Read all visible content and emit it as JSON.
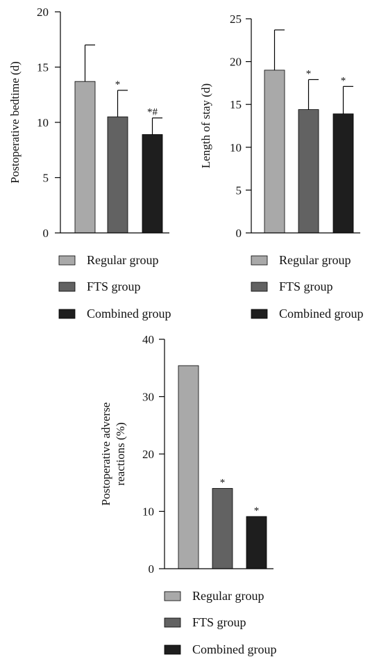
{
  "chart_data": [
    {
      "type": "bar",
      "ylabel": "Postoperative bedtime (d)",
      "ylim": [
        0,
        20
      ],
      "yticks": [
        0,
        5,
        10,
        15,
        20
      ],
      "categories": [
        "Regular group",
        "FTS group",
        "Combined group"
      ],
      "values": [
        13.7,
        10.5,
        8.9
      ],
      "errors": [
        3.3,
        2.4,
        1.5
      ],
      "annotations": [
        "",
        "*",
        "*#"
      ],
      "colors": [
        "#a9a9a9",
        "#626262",
        "#1e1e1e"
      ],
      "legend": [
        "Regular group",
        "FTS group",
        "Combined group"
      ]
    },
    {
      "type": "bar",
      "ylabel": "Length of stay (d)",
      "ylim": [
        0,
        25
      ],
      "yticks": [
        0,
        5,
        10,
        15,
        20,
        25
      ],
      "categories": [
        "Regular group",
        "FTS group",
        "Combined group"
      ],
      "values": [
        19.0,
        14.4,
        13.9
      ],
      "errors": [
        4.7,
        3.5,
        3.2
      ],
      "annotations": [
        "",
        "*",
        "*"
      ],
      "colors": [
        "#a9a9a9",
        "#626262",
        "#1e1e1e"
      ],
      "legend": [
        "Regular group",
        "FTS group",
        "Combined group"
      ]
    },
    {
      "type": "bar",
      "ylabel": "Postoperative adverse reactions (%)",
      "ylabel_lines": [
        "Postoperative adverse",
        "reactions (%)"
      ],
      "ylim": [
        0,
        40
      ],
      "yticks": [
        0,
        10,
        20,
        30,
        40
      ],
      "categories": [
        "Regular group",
        "FTS group",
        "Combined group"
      ],
      "values": [
        35.4,
        14.0,
        9.1
      ],
      "errors": [
        0,
        0,
        0
      ],
      "annotations": [
        "",
        "*",
        "*"
      ],
      "colors": [
        "#a9a9a9",
        "#626262",
        "#1e1e1e"
      ],
      "legend": [
        "Regular group",
        "FTS group",
        "Combined group"
      ]
    }
  ]
}
